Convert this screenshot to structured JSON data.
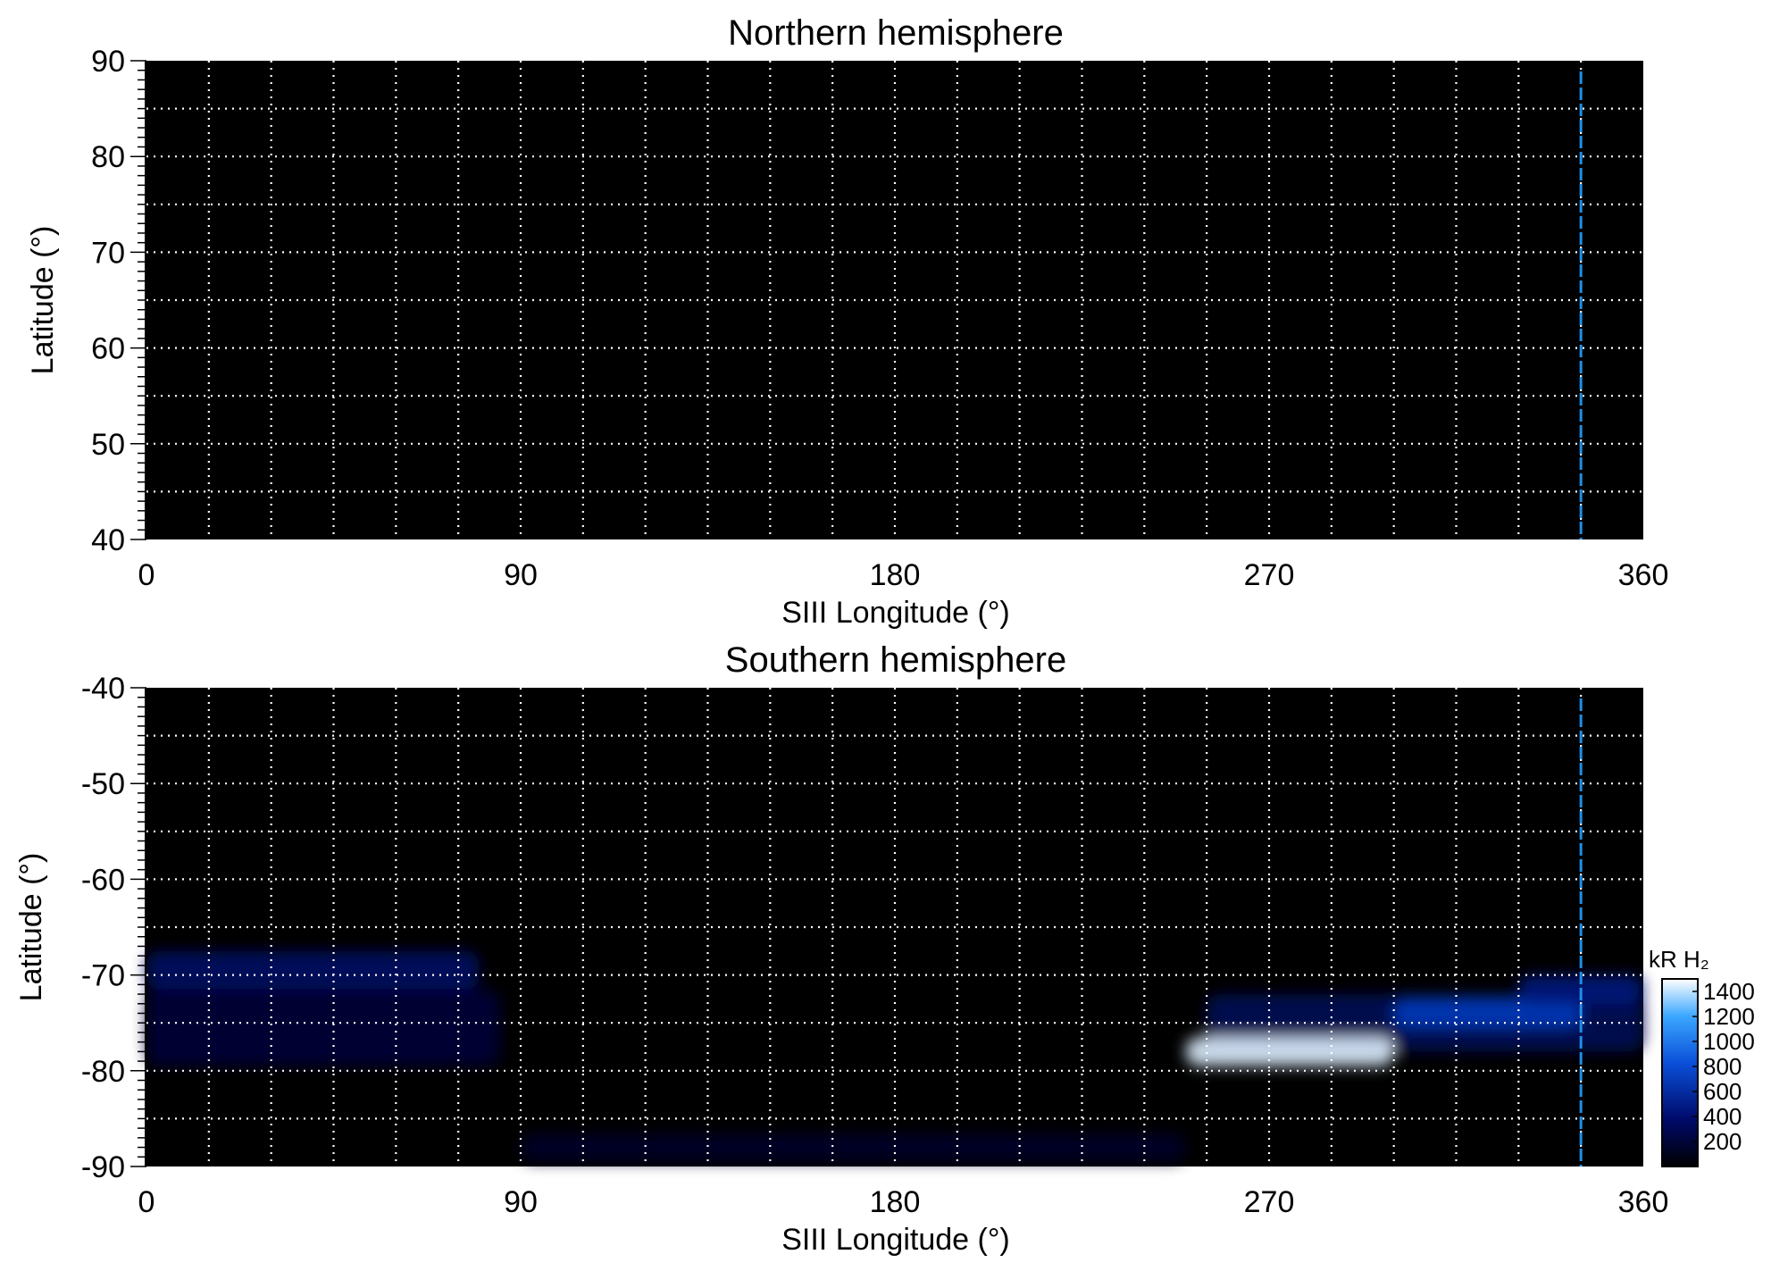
{
  "chart_data": [
    {
      "type": "heatmap",
      "title": "Northern hemisphere",
      "xlabel": "SIII Longitude (°)",
      "ylabel": "Latitude (°)",
      "xlim": [
        0,
        360
      ],
      "ylim": [
        40,
        90
      ],
      "x_ticks": [
        "0",
        "90",
        "180",
        "270",
        "360"
      ],
      "y_ticks": [
        "90",
        "80",
        "70",
        "60",
        "50",
        "40"
      ],
      "grid": true,
      "background_color": "#000000",
      "grid_color": "#ffffff",
      "marker_longitude": 345,
      "marker_color": "#1e8fe8",
      "emission_bands": []
    },
    {
      "type": "heatmap",
      "title": "Southern hemisphere",
      "xlabel": "SIII Longitude (°)",
      "ylabel": "Latitude (°)",
      "xlim": [
        0,
        360
      ],
      "ylim": [
        -90,
        -40
      ],
      "x_ticks": [
        "0",
        "90",
        "180",
        "270",
        "360"
      ],
      "y_ticks": [
        "-40",
        "-50",
        "-60",
        "-70",
        "-80",
        "-90"
      ],
      "grid": true,
      "background_color": "#000000",
      "grid_color": "#ffffff",
      "marker_longitude": 345,
      "marker_color": "#1e8fe8",
      "colorbar": {
        "label": "kR H₂",
        "ticks": [
          "1400",
          "1200",
          "1000",
          "800",
          "600",
          "400",
          "200"
        ],
        "range": [
          0,
          1500
        ],
        "placement": "right"
      },
      "emission_bands": [
        {
          "lon": [
            0,
            80
          ],
          "lat": -69.5,
          "lat_width": 4,
          "intensity": 350
        },
        {
          "lon": [
            0,
            85
          ],
          "lat": -75.5,
          "lat_width": 8,
          "intensity": 200
        },
        {
          "lon": [
            255,
            360
          ],
          "lat": -75,
          "lat_width": 6,
          "intensity": 300
        },
        {
          "lon": [
            300,
            345
          ],
          "lat": -74,
          "lat_width": 3,
          "intensity": 700
        },
        {
          "lon": [
            250,
            300
          ],
          "lat": -78,
          "lat_width": 3,
          "intensity": 1450
        },
        {
          "lon": [
            330,
            360
          ],
          "lat": -71.5,
          "lat_width": 3,
          "intensity": 450
        },
        {
          "lon": [
            90,
            250
          ],
          "lat": -88,
          "lat_width": 3,
          "intensity": 150
        }
      ]
    }
  ]
}
